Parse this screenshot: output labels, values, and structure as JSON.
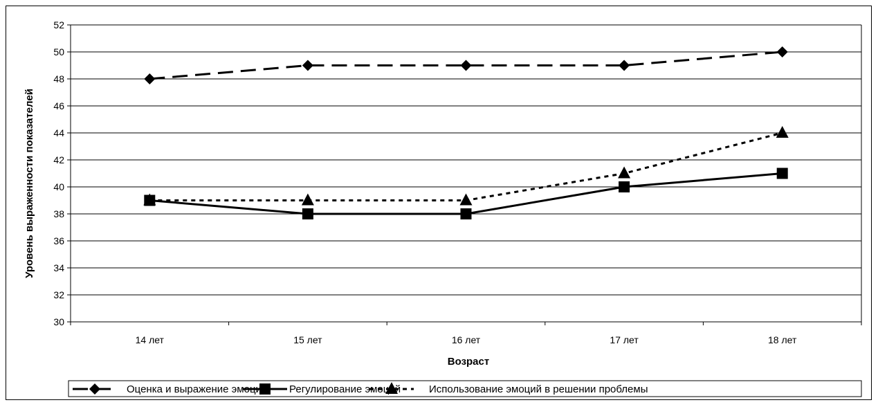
{
  "chart_data": {
    "type": "line",
    "title": "",
    "xlabel": "Возраст",
    "ylabel": "Уровень выраженности показателей",
    "categories": [
      "14 лет",
      "15 лет",
      "16 лет",
      "17 лет",
      "18 лет"
    ],
    "ylim": [
      30,
      52
    ],
    "ytick_step": 2,
    "yticks": [
      "30",
      "32",
      "34",
      "36",
      "38",
      "40",
      "42",
      "44",
      "46",
      "48",
      "50",
      "52"
    ],
    "grid": true,
    "legend_position": "bottom",
    "series": [
      {
        "name": "Оценка и выражение эмоций",
        "values": [
          48,
          49,
          49,
          49,
          50
        ],
        "marker": "diamond",
        "line_style": "long-dash",
        "color": "#000000"
      },
      {
        "name": "Регулирование эмоций",
        "values": [
          39,
          38,
          38,
          40,
          41
        ],
        "marker": "square",
        "line_style": "solid",
        "color": "#000000"
      },
      {
        "name": "Использование эмоций в решении проблемы",
        "values": [
          39,
          39,
          39,
          41,
          44
        ],
        "marker": "triangle",
        "line_style": "dotted",
        "color": "#000000"
      }
    ]
  }
}
